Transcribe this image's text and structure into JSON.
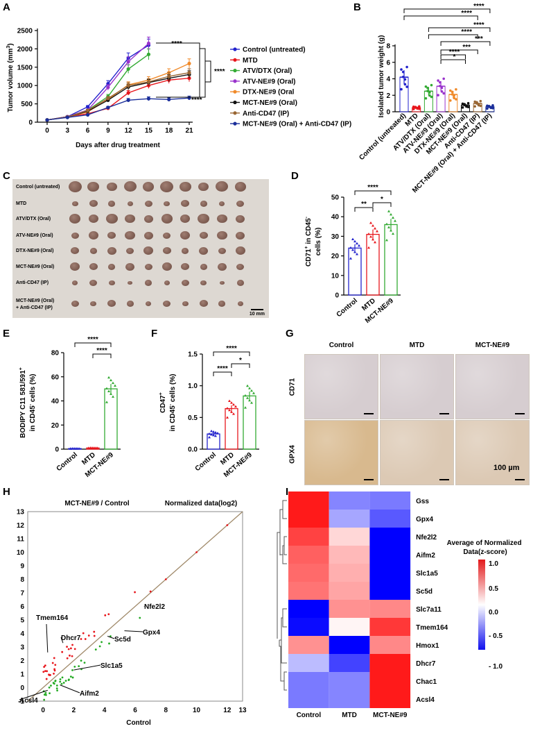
{
  "panels": {
    "A": "A",
    "B": "B",
    "C": "C",
    "D": "D",
    "E": "E",
    "F": "F",
    "G": "G",
    "H": "H",
    "I": "I"
  },
  "colors": {
    "control": "#2222cc",
    "mtd": "#e8161c",
    "atv": "#33aa33",
    "atvne": "#9933cc",
    "dtx": "#f08a2a",
    "mct": "#111111",
    "cd47": "#996633",
    "combo": "#1a2e9a"
  },
  "sig": {
    "s1": "*",
    "s2": "**",
    "s3": "***",
    "s4": "****"
  },
  "chart_data": [
    {
      "id": "A",
      "type": "line",
      "xlabel": "Days after drug treatment",
      "ylabel": "Tumor volume (mm3)",
      "ylabel_main": "Tumor volume (mm",
      "ylabel_sup": "3",
      "ylabel_end": ")",
      "xticks": [
        "0",
        "3",
        "6",
        "9",
        "12",
        "15",
        "18",
        "21"
      ],
      "yticks": [
        "0",
        "500",
        "1000",
        "1500",
        "2000",
        "2500"
      ],
      "ylim": [
        0,
        2500
      ],
      "xlim": [
        0,
        21
      ],
      "series": [
        {
          "name": "Control (untreated)",
          "x": [
            0,
            3,
            6,
            9,
            12,
            15
          ],
          "values": [
            60,
            150,
            420,
            1050,
            1750,
            2100
          ]
        },
        {
          "name": "MTD",
          "x": [
            0,
            3,
            6,
            9,
            12,
            15,
            18,
            21
          ],
          "values": [
            60,
            150,
            230,
            380,
            800,
            1000,
            1150,
            1200
          ]
        },
        {
          "name": "ATV/DTX (Oral)",
          "x": [
            0,
            3,
            6,
            9,
            12,
            15
          ],
          "values": [
            60,
            150,
            330,
            700,
            1450,
            1850
          ]
        },
        {
          "name": "ATV-NE#9 (Oral)",
          "x": [
            0,
            3,
            6,
            9,
            12,
            15
          ],
          "values": [
            60,
            150,
            330,
            950,
            1650,
            2150
          ]
        },
        {
          "name": "DTX-NE#9 (Oral",
          "x": [
            0,
            3,
            6,
            9,
            12,
            15,
            18,
            21
          ],
          "values": [
            60,
            140,
            280,
            620,
            1020,
            1150,
            1350,
            1600
          ]
        },
        {
          "name": "MCT-NE#9 (Oral)",
          "x": [
            0,
            3,
            6,
            9,
            12,
            15,
            18,
            21
          ],
          "values": [
            60,
            140,
            300,
            600,
            960,
            1080,
            1200,
            1300
          ]
        },
        {
          "name": "Anti-CD47 (IP)",
          "x": [
            0,
            3,
            6,
            9,
            12,
            15,
            18,
            21
          ],
          "values": [
            60,
            140,
            320,
            650,
            1000,
            1100,
            1250,
            1350
          ]
        },
        {
          "name": "MCT-NE#9 (Oral) + Anti-CD47 (IP)",
          "x": [
            0,
            3,
            6,
            9,
            12,
            15,
            18,
            21
          ],
          "values": [
            60,
            130,
            200,
            400,
            600,
            640,
            620,
            660
          ]
        }
      ]
    },
    {
      "id": "B",
      "type": "bar",
      "ylabel": "Isolated tumor weight  (g)",
      "yticks": [
        "0",
        "2",
        "4",
        "6",
        "8"
      ],
      "ylim": [
        0,
        8
      ],
      "categories": [
        "Control (untreated)",
        "MTD",
        "ATV/DTX (Oral)",
        "ATV-NE#9 (Oral)",
        "DTX-NE#9 (Oral)",
        "MCT-NE#9 (Oral)",
        "Anti-CD47 (IP)",
        "MCT-NE#9 (Oral) + Anti-CD47 (IP)"
      ],
      "values": [
        4.2,
        0.5,
        2.5,
        3.1,
        2.1,
        0.8,
        1.0,
        0.6
      ]
    },
    {
      "id": "D",
      "type": "bar",
      "ylabel_a": "CD71",
      "ylabel_sup": "+",
      "ylabel_b": " in CD45",
      "ylabel_sup2": "-",
      "ylabel_c": "cells (%)",
      "yticks": [
        "0",
        "10",
        "20",
        "30",
        "40",
        "50"
      ],
      "ylim": [
        0,
        50
      ],
      "categories": [
        "Control",
        "MTD",
        "MCT-NE#9"
      ],
      "values": [
        24,
        31,
        36
      ]
    },
    {
      "id": "E",
      "type": "bar",
      "ylabel_a": "BODIPY C11 581/591",
      "ylabel_sup": "+",
      "ylabel_b": "in CD45",
      "ylabel_sup2": "-",
      "ylabel_c": " cells (%)",
      "yticks": [
        "0",
        "20",
        "40",
        "60",
        "80"
      ],
      "ylim": [
        0,
        80
      ],
      "categories": [
        "Control",
        "MTD",
        "MCT-NE#9"
      ],
      "values": [
        0.5,
        1,
        50
      ]
    },
    {
      "id": "F",
      "type": "bar",
      "ylabel_a": "CD47",
      "ylabel_sup": "+",
      "ylabel_b": "in CD45",
      "ylabel_sup2": "-",
      "ylabel_c": " cells (%)",
      "yticks": [
        "0.0",
        "0.5",
        "1.0",
        "1.5"
      ],
      "ylim": [
        0,
        1.5
      ],
      "categories": [
        "Control",
        "MTD",
        "MCT-NE#9"
      ],
      "values": [
        0.24,
        0.64,
        0.84
      ]
    },
    {
      "id": "H",
      "type": "scatter",
      "title": "MCT-NE#9 / Control",
      "subtitle": "Normalized data(log2)",
      "xlabel": "Control",
      "xticks": [
        "0",
        "2",
        "4",
        "6",
        "8",
        "10",
        "12",
        "13"
      ],
      "yticks": [
        "-1",
        "0",
        "1",
        "2",
        "3",
        "4",
        "5",
        "6",
        "7",
        "8",
        "9",
        "10",
        "11",
        "12",
        "13"
      ],
      "xlim": [
        -1,
        13
      ],
      "ylim": [
        -1,
        13
      ],
      "labels": [
        {
          "text": "Tmem164",
          "x": 0.3,
          "y": 2.6
        },
        {
          "text": "Dhcr7",
          "x": 1.3,
          "y": 3.3
        },
        {
          "text": "Nfe2l2",
          "x": 6.6,
          "y": 6.0
        },
        {
          "text": "Gpx4",
          "x": 5.3,
          "y": 4.2
        },
        {
          "text": "Sc5d",
          "x": 4.2,
          "y": 3.8
        },
        {
          "text": "Slc1a5",
          "x": 2.0,
          "y": 1.3
        },
        {
          "text": "Aifm2",
          "x": 1.1,
          "y": 0.2
        },
        {
          "text": "Acsl4",
          "x": 0.3,
          "y": -0.2
        }
      ]
    },
    {
      "id": "I",
      "type": "heatmap",
      "rows": [
        "Gss",
        "Gpx4",
        "Nfe2l2",
        "Aifm2",
        "Slc1a5",
        "Sc5d",
        "Slc7a11",
        "Tmem164",
        "Hmox1",
        "Dhcr7",
        "Chac1",
        "Acsl4"
      ],
      "columns": [
        "Control",
        "MTD",
        "MCT-NE#9"
      ],
      "values": [
        [
          1.15,
          -0.55,
          -0.6
        ],
        [
          1.15,
          -0.4,
          -0.75
        ],
        [
          0.95,
          0.2,
          -1.15
        ],
        [
          0.8,
          0.35,
          -1.15
        ],
        [
          0.75,
          0.4,
          -1.15
        ],
        [
          0.7,
          0.45,
          -1.15
        ],
        [
          -1.15,
          0.55,
          0.6
        ],
        [
          -1.1,
          0.05,
          1.0
        ],
        [
          0.55,
          -1.15,
          0.6
        ],
        [
          -0.3,
          -0.85,
          1.15
        ],
        [
          -0.6,
          -0.55,
          1.15
        ],
        [
          -0.6,
          -0.55,
          1.15
        ]
      ],
      "legend_title": "Average of Normalized Data(z-score)",
      "legend_title_1": "Average of Normalized",
      "legend_title_2": "Data(z-score)",
      "legend_ticks": [
        "1.0",
        "0.5",
        "0.0",
        "- 0.5",
        "- 1.0"
      ]
    }
  ],
  "C": {
    "rows": [
      "Control (untreated)",
      "MTD",
      "ATV/DTX (Oral)",
      "ATV-NE#9 (Oral)",
      "DTX-NE#9 (Oral)",
      "MCT-NE#9 (Oral)",
      "Anti-CD47 (IP)",
      "MCT-NE#9 (Oral)",
      "+ Anti-CD47 (IP)"
    ],
    "scale": "10 mm"
  },
  "G": {
    "columns": [
      "Control",
      "MTD",
      "MCT-NE#9"
    ],
    "rows": [
      "CD71",
      "GPX4"
    ],
    "scale": "100 µm"
  }
}
